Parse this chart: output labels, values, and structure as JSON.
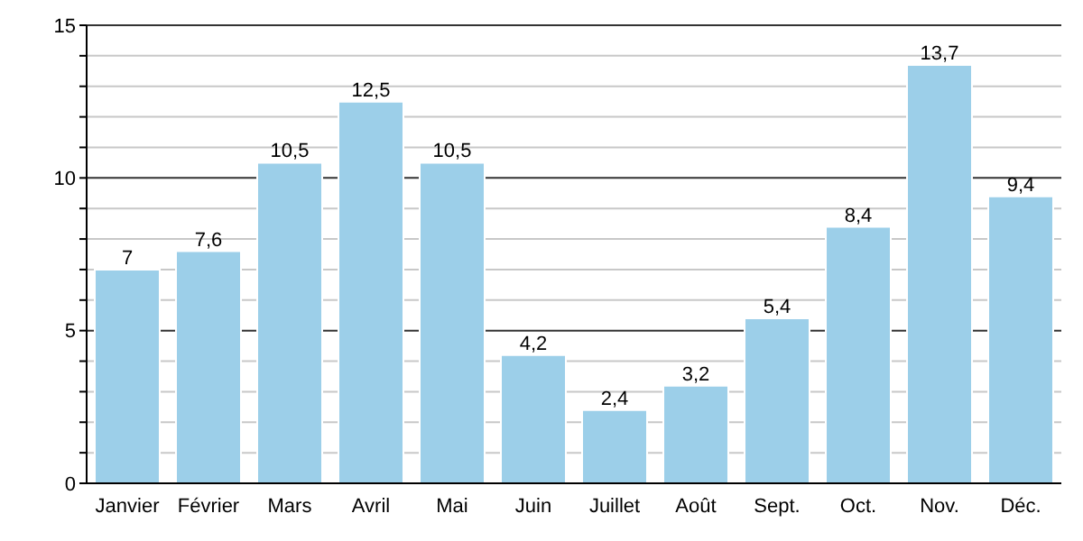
{
  "chart_data": {
    "type": "bar",
    "categories": [
      "Janvier",
      "Février",
      "Mars",
      "Avril",
      "Mai",
      "Juin",
      "Juillet",
      "Août",
      "Sept.",
      "Oct.",
      "Nov.",
      "Déc."
    ],
    "values": [
      7,
      7.6,
      10.5,
      12.5,
      10.5,
      4.2,
      2.4,
      3.2,
      5.4,
      8.4,
      13.7,
      9.4
    ],
    "value_labels": [
      "7",
      "7,6",
      "10,5",
      "12,5",
      "10,5",
      "4,2",
      "2,4",
      "3,2",
      "5,4",
      "8,4",
      "13,7",
      "9,4"
    ],
    "color": "#9ccfe9",
    "ylim": [
      0,
      15
    ],
    "yticks": [
      0,
      {
        "value": 1,
        "label": null
      },
      {
        "value": 2,
        "label": null
      },
      {
        "value": 3,
        "label": null
      },
      {
        "value": 4,
        "label": null
      },
      5,
      {
        "value": 6,
        "label": null
      },
      {
        "value": 7,
        "label": null
      },
      {
        "value": 8,
        "label": null
      },
      {
        "value": 9,
        "label": null
      },
      10,
      {
        "value": 11,
        "label": null
      },
      {
        "value": 12,
        "label": null
      },
      {
        "value": 13,
        "label": null
      },
      {
        "value": 14,
        "label": null
      },
      15
    ],
    "grid": "y"
  }
}
